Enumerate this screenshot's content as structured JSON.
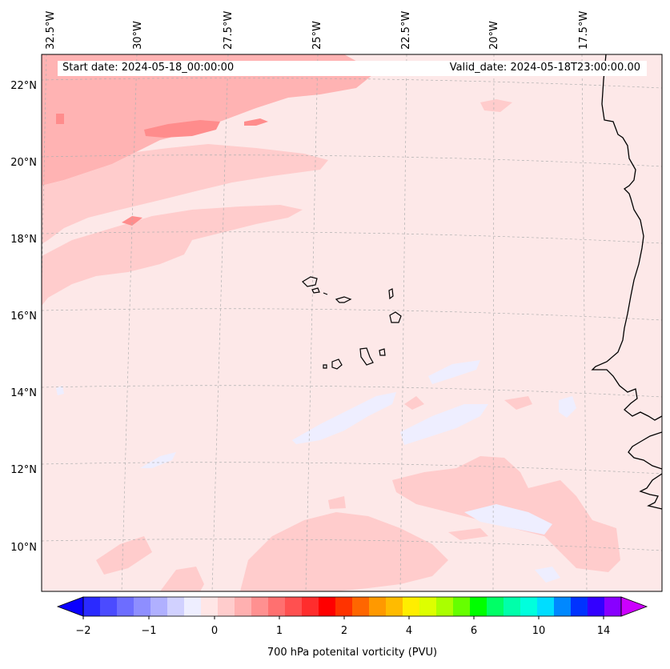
{
  "header": {
    "start_date": "Start date: 2024-05-18_00:00:00",
    "valid_date": "Valid_date: 2024-05-18T23:00:00.00"
  },
  "map": {
    "longitude_labels": [
      "32.5°W",
      "30°W",
      "27.5°W",
      "25°W",
      "22.5°W",
      "20°W",
      "17.5°W"
    ],
    "latitude_labels": [
      "22°N",
      "20°N",
      "18°N",
      "16°N",
      "14°N",
      "12°N",
      "10°N"
    ],
    "field_colors": {
      "background": "#fde8e8",
      "band_light": "#ffcccc",
      "band_medium": "#ffb3b3",
      "band_strong": "#ff8c8c",
      "negative": "#eeeeff"
    }
  },
  "colorbar": {
    "title": "700 hPa potenital vorticity (PVU)",
    "tick_labels": [
      "−2",
      "−1",
      "0",
      "1",
      "2",
      "4",
      "6",
      "10",
      "14"
    ],
    "colors": [
      "#0a00ff",
      "#2a2aff",
      "#4b4bff",
      "#6d6dff",
      "#8e8eff",
      "#b0b0ff",
      "#d1d1ff",
      "#eeeeff",
      "#ffe6e6",
      "#ffcccc",
      "#ffb0b0",
      "#ff9090",
      "#ff7070",
      "#ff5050",
      "#ff2d2d",
      "#ff0000",
      "#ff3300",
      "#ff6600",
      "#ff9900",
      "#ffbb00",
      "#ffee00",
      "#ddff00",
      "#aaff00",
      "#66ff00",
      "#00ff00",
      "#00ff66",
      "#00ffaa",
      "#00ffdd",
      "#00ddff",
      "#0088ff",
      "#0033ff",
      "#3300ff",
      "#8800ff",
      "#cc00ff"
    ]
  }
}
